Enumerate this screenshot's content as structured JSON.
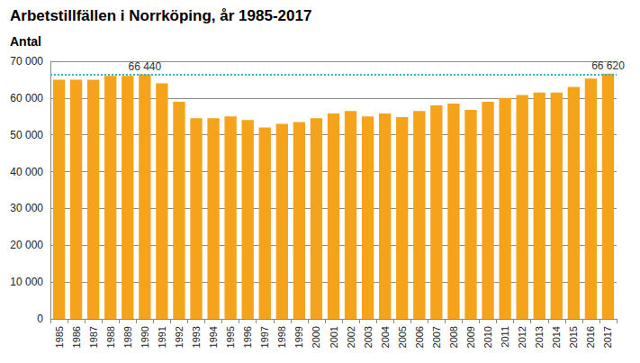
{
  "chart_data": {
    "type": "bar",
    "title": "Arbetstillfällen i Norrköping, år 1985-2017",
    "subtitle": "Antal",
    "categories": [
      "1985",
      "1986",
      "1987",
      "1988",
      "1989",
      "1990",
      "1991",
      "1992",
      "1993",
      "1994",
      "1995",
      "1996",
      "1997",
      "1998",
      "1999",
      "2000",
      "2001",
      "2002",
      "2003",
      "2004",
      "2005",
      "2006",
      "2007",
      "2008",
      "2009",
      "2010",
      "2011",
      "2012",
      "2013",
      "2014",
      "2015",
      "2016",
      "2017"
    ],
    "values": [
      65000,
      65000,
      65000,
      66000,
      66000,
      66440,
      64000,
      59000,
      54500,
      54500,
      55000,
      54000,
      52000,
      53000,
      53500,
      54500,
      55800,
      56500,
      55000,
      55800,
      54800,
      56500,
      58000,
      58500,
      56800,
      59000,
      60000,
      60800,
      61500,
      61500,
      63000,
      65300,
      66620
    ],
    "color": "#f5a31a",
    "ylim": [
      0,
      70000
    ],
    "yticks": [
      0,
      {
        "value": 10000,
        "label": "10 000"
      },
      {
        "value": 20000,
        "label": "20 000"
      },
      {
        "value": 30000,
        "label": "30 000"
      },
      {
        "value": 40000,
        "label": "40 000"
      },
      {
        "value": 50000,
        "label": "50 000"
      },
      {
        "value": 60000,
        "label": "60 000"
      },
      {
        "value": 70000,
        "label": "70 000"
      }
    ],
    "grid": true,
    "annotations": [
      {
        "category": "1990",
        "value": 66440,
        "label": "66 440"
      },
      {
        "category": "2017",
        "value": 66620,
        "label": "66 620"
      }
    ],
    "reference_line": {
      "value": 66440,
      "color": "#3bb3c3",
      "line_style": "dotted"
    }
  }
}
